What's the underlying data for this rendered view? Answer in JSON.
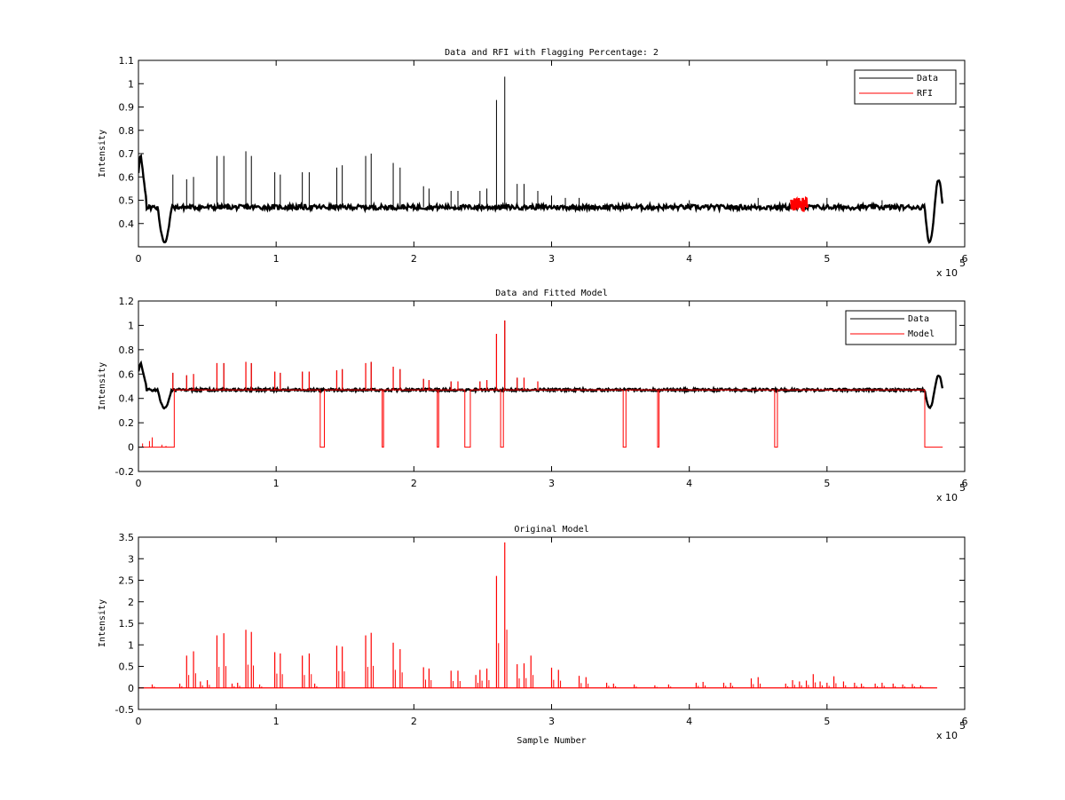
{
  "colors": {
    "data": "#000000",
    "rfi": "#ff0000",
    "model": "#ff0000",
    "axis": "#000000",
    "background": "#ffffff"
  },
  "chart_data": [
    {
      "type": "line",
      "title": "Data and RFI with Flagging Percentage: 2",
      "xlabel": "",
      "ylabel": "Intensity",
      "xlim": [
        0,
        600000
      ],
      "ylim": [
        0.3,
        1.1
      ],
      "x_multiplier": "x 10",
      "x_multiplier_exp": "5",
      "xticks": [
        0,
        1,
        2,
        3,
        4,
        5,
        6
      ],
      "yticks": [
        0.4,
        0.5,
        0.6,
        0.7,
        0.8,
        0.9,
        1,
        1.1
      ],
      "legend": {
        "position": "top-right",
        "entries": [
          "Data",
          "RFI"
        ]
      },
      "series": [
        {
          "name": "Data",
          "baseline": 0.47,
          "points": [
            [
              0,
              0.62
            ],
            [
              1500,
              0.7
            ],
            [
              3500,
              0.66
            ],
            [
              5500,
              0.5
            ],
            [
              8000,
              0.47
            ],
            [
              14000,
              0.47
            ],
            [
              16000,
              0.38
            ],
            [
              19000,
              0.32
            ],
            [
              22000,
              0.36
            ],
            [
              24000,
              0.47
            ],
            [
              580000,
              0.47
            ],
            [
              570000,
              0.46
            ],
            [
              574000,
              0.38
            ],
            [
              577000,
              0.32
            ],
            [
              580000,
              0.37
            ],
            [
              582000,
              0.58
            ],
            [
              583000,
              0.5
            ],
            [
              584000,
              0.46
            ]
          ],
          "spikes": [
            [
              25000,
              0.61
            ],
            [
              35000,
              0.59
            ],
            [
              40000,
              0.6
            ],
            [
              57000,
              0.69
            ],
            [
              62000,
              0.69
            ],
            [
              78000,
              0.71
            ],
            [
              82000,
              0.69
            ],
            [
              99000,
              0.62
            ],
            [
              103000,
              0.61
            ],
            [
              119000,
              0.62
            ],
            [
              124000,
              0.62
            ],
            [
              144000,
              0.64
            ],
            [
              148000,
              0.65
            ],
            [
              165000,
              0.69
            ],
            [
              169000,
              0.7
            ],
            [
              185000,
              0.66
            ],
            [
              190000,
              0.64
            ],
            [
              207000,
              0.56
            ],
            [
              211000,
              0.55
            ],
            [
              227000,
              0.54
            ],
            [
              232000,
              0.54
            ],
            [
              248000,
              0.54
            ],
            [
              253000,
              0.55
            ],
            [
              260000,
              0.93
            ],
            [
              266000,
              1.03
            ],
            [
              275000,
              0.57
            ],
            [
              280000,
              0.57
            ],
            [
              290000,
              0.54
            ],
            [
              300000,
              0.52
            ],
            [
              310000,
              0.51
            ],
            [
              320000,
              0.51
            ],
            [
              400000,
              0.5
            ],
            [
              450000,
              0.51
            ],
            [
              500000,
              0.51
            ],
            [
              540000,
              0.5
            ]
          ]
        },
        {
          "name": "RFI",
          "region": [
            474000,
            486000
          ],
          "level": [
            0.45,
            0.51
          ]
        }
      ]
    },
    {
      "type": "line",
      "title": "Data and Fitted Model",
      "xlabel": "",
      "ylabel": "Intensity",
      "xlim": [
        0,
        600000
      ],
      "ylim": [
        -0.2,
        1.2
      ],
      "x_multiplier": "x 10",
      "x_multiplier_exp": "5",
      "xticks": [
        0,
        1,
        2,
        3,
        4,
        5,
        6
      ],
      "yticks": [
        -0.2,
        0,
        0.2,
        0.4,
        0.6,
        0.8,
        1,
        1.2
      ],
      "legend": {
        "position": "top-right",
        "entries": [
          "Data",
          "Model"
        ]
      },
      "series": [
        {
          "name": "Data",
          "baseline": 0.47
        },
        {
          "name": "Model",
          "baseline": 0.47,
          "zero_regions": [
            [
              0,
              26000
            ],
            [
              132000,
              135000
            ],
            [
              177000,
              178000
            ],
            [
              217000,
              218000
            ],
            [
              237000,
              241000
            ],
            [
              263000,
              265000
            ],
            [
              352000,
              354000
            ],
            [
              377000,
              378000
            ],
            [
              462000,
              464000
            ],
            [
              571000,
              583000
            ]
          ],
          "spikes": [
            [
              25000,
              0.61
            ],
            [
              35000,
              0.59
            ],
            [
              40000,
              0.6
            ],
            [
              57000,
              0.69
            ],
            [
              62000,
              0.69
            ],
            [
              78000,
              0.7
            ],
            [
              82000,
              0.69
            ],
            [
              99000,
              0.62
            ],
            [
              103000,
              0.61
            ],
            [
              119000,
              0.62
            ],
            [
              124000,
              0.62
            ],
            [
              144000,
              0.63
            ],
            [
              148000,
              0.64
            ],
            [
              165000,
              0.69
            ],
            [
              169000,
              0.7
            ],
            [
              185000,
              0.66
            ],
            [
              190000,
              0.64
            ],
            [
              207000,
              0.56
            ],
            [
              211000,
              0.55
            ],
            [
              227000,
              0.54
            ],
            [
              232000,
              0.54
            ],
            [
              248000,
              0.54
            ],
            [
              253000,
              0.55
            ],
            [
              260000,
              0.93
            ],
            [
              266000,
              1.04
            ],
            [
              275000,
              0.57
            ],
            [
              280000,
              0.57
            ],
            [
              290000,
              0.54
            ]
          ]
        }
      ]
    },
    {
      "type": "line",
      "title": "Original Model",
      "xlabel": "Sample Number",
      "ylabel": "Intensity",
      "xlim": [
        0,
        600000
      ],
      "ylim": [
        -0.5,
        3.5
      ],
      "x_multiplier": "x 10",
      "x_multiplier_exp": "5",
      "xticks": [
        0,
        1,
        2,
        3,
        4,
        5,
        6
      ],
      "yticks": [
        -0.5,
        0,
        0.5,
        1,
        1.5,
        2,
        2.5,
        3,
        3.5
      ],
      "series": [
        {
          "name": "Original Model",
          "baseline": 0,
          "x_end": 580000,
          "spikes": [
            [
              10000,
              0.08
            ],
            [
              30000,
              0.1
            ],
            [
              35000,
              0.75
            ],
            [
              40000,
              0.85
            ],
            [
              45000,
              0.15
            ],
            [
              50000,
              0.18
            ],
            [
              57000,
              1.22
            ],
            [
              62000,
              1.27
            ],
            [
              68000,
              0.1
            ],
            [
              72000,
              0.12
            ],
            [
              78000,
              1.35
            ],
            [
              82000,
              1.3
            ],
            [
              88000,
              0.08
            ],
            [
              99000,
              0.83
            ],
            [
              103000,
              0.8
            ],
            [
              119000,
              0.75
            ],
            [
              124000,
              0.8
            ],
            [
              128000,
              0.1
            ],
            [
              144000,
              0.98
            ],
            [
              148000,
              0.96
            ],
            [
              165000,
              1.22
            ],
            [
              169000,
              1.28
            ],
            [
              185000,
              1.05
            ],
            [
              190000,
              0.9
            ],
            [
              207000,
              0.48
            ],
            [
              211000,
              0.45
            ],
            [
              227000,
              0.4
            ],
            [
              232000,
              0.4
            ],
            [
              245000,
              0.3
            ],
            [
              248000,
              0.42
            ],
            [
              253000,
              0.45
            ],
            [
              260000,
              2.6
            ],
            [
              266000,
              3.38
            ],
            [
              275000,
              0.55
            ],
            [
              280000,
              0.57
            ],
            [
              285000,
              0.75
            ],
            [
              300000,
              0.47
            ],
            [
              305000,
              0.42
            ],
            [
              320000,
              0.28
            ],
            [
              325000,
              0.25
            ],
            [
              340000,
              0.12
            ],
            [
              345000,
              0.1
            ],
            [
              360000,
              0.08
            ],
            [
              375000,
              0.06
            ],
            [
              385000,
              0.08
            ],
            [
              405000,
              0.12
            ],
            [
              410000,
              0.14
            ],
            [
              425000,
              0.12
            ],
            [
              430000,
              0.12
            ],
            [
              445000,
              0.22
            ],
            [
              450000,
              0.25
            ],
            [
              470000,
              0.1
            ],
            [
              475000,
              0.18
            ],
            [
              480000,
              0.15
            ],
            [
              485000,
              0.17
            ],
            [
              490000,
              0.32
            ],
            [
              495000,
              0.15
            ],
            [
              500000,
              0.12
            ],
            [
              505000,
              0.27
            ],
            [
              512000,
              0.15
            ],
            [
              520000,
              0.12
            ],
            [
              525000,
              0.1
            ],
            [
              535000,
              0.1
            ],
            [
              540000,
              0.12
            ],
            [
              548000,
              0.1
            ],
            [
              555000,
              0.08
            ],
            [
              562000,
              0.09
            ],
            [
              568000,
              0.06
            ]
          ]
        }
      ]
    }
  ]
}
